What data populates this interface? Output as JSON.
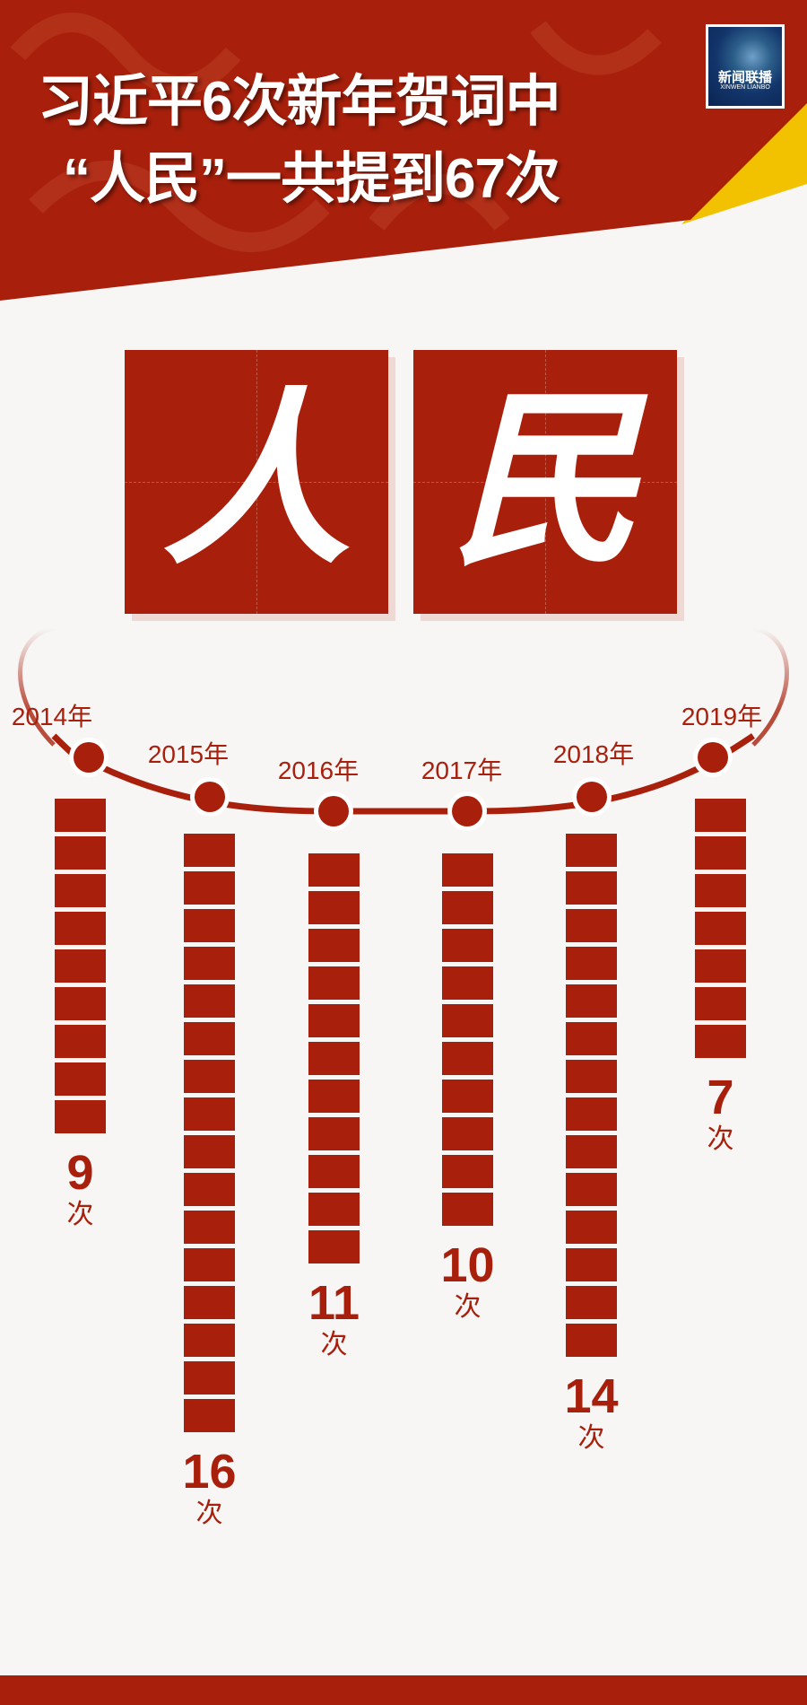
{
  "header": {
    "title_line1": "习近平6次新年贺词中",
    "title_line2": "“人民”一共提到67次",
    "logo": {
      "text": "新闻联播",
      "subtext": "XINWEN LIANBO"
    }
  },
  "hero": {
    "char1": "人",
    "char2": "民"
  },
  "colors": {
    "primary": "#a8200c",
    "accent": "#f2c200",
    "background": "#f7f6f5"
  },
  "chart_data": {
    "type": "bar",
    "style": "stacked unit squares hanging from timeline",
    "categories": [
      "2014年",
      "2015年",
      "2016年",
      "2017年",
      "2018年",
      "2019年"
    ],
    "values": [
      9,
      16,
      11,
      10,
      14,
      7
    ],
    "value_labels": [
      "9",
      "16",
      "11",
      "10",
      "14",
      "7"
    ],
    "unit": "次"
  }
}
